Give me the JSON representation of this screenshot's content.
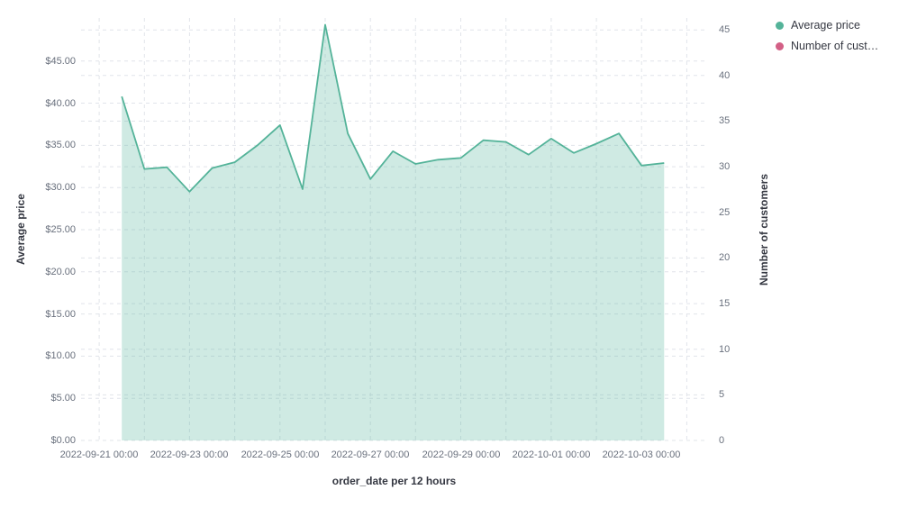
{
  "legend": {
    "items": [
      {
        "label": "Average price",
        "color": "#54b399"
      },
      {
        "label": "Number of cust…",
        "color": "#d36086"
      }
    ]
  },
  "chart_data": {
    "type": "area",
    "title": "",
    "xlabel": "order_date per 12 hours",
    "ylabel": "Average price",
    "ylabel_right": "Number of customers",
    "legend_position": "top-right",
    "grid": "dashed",
    "x": [
      "2022-09-21 12:00",
      "2022-09-22 00:00",
      "2022-09-22 12:00",
      "2022-09-23 00:00",
      "2022-09-23 12:00",
      "2022-09-24 00:00",
      "2022-09-24 12:00",
      "2022-09-25 00:00",
      "2022-09-25 12:00",
      "2022-09-26 00:00",
      "2022-09-26 12:00",
      "2022-09-27 00:00",
      "2022-09-27 12:00",
      "2022-09-28 00:00",
      "2022-09-28 12:00",
      "2022-09-29 00:00",
      "2022-09-29 12:00",
      "2022-09-30 00:00",
      "2022-09-30 12:00",
      "2022-10-01 00:00",
      "2022-10-01 12:00",
      "2022-10-02 00:00",
      "2022-10-02 12:00",
      "2022-10-03 00:00",
      "2022-10-03 12:00"
    ],
    "series": [
      {
        "name": "Average price",
        "axis": "left",
        "type": "area",
        "line_color": "#54b399",
        "fill_color": "rgba(84,179,153,0.28)",
        "values": [
          40.8,
          32.2,
          32.4,
          29.5,
          32.3,
          33.0,
          35.0,
          37.4,
          29.8,
          49.3,
          36.4,
          31.0,
          34.3,
          32.8,
          33.3,
          33.5,
          35.6,
          35.4,
          33.9,
          35.8,
          34.1,
          35.2,
          36.4,
          32.6,
          32.9
        ]
      },
      {
        "name": "Number of customers",
        "axis": "right",
        "type": "line",
        "line_color": "#d36086",
        "values": []
      }
    ],
    "left_axis": {
      "title": "Average price",
      "tick_labels": [
        "$0.00",
        "$5.00",
        "$10.00",
        "$15.00",
        "$20.00",
        "$25.00",
        "$30.00",
        "$35.00",
        "$40.00",
        "$45.00"
      ],
      "tick_values": [
        0,
        5,
        10,
        15,
        20,
        25,
        30,
        35,
        40,
        45
      ],
      "min": 0,
      "max": 50.1
    },
    "right_axis": {
      "title": "Number of customers",
      "tick_labels": [
        "0",
        "5",
        "10",
        "15",
        "20",
        "25",
        "30",
        "35",
        "40",
        "45"
      ],
      "tick_values": [
        0,
        5,
        10,
        15,
        20,
        25,
        30,
        35,
        40,
        45
      ],
      "min": 0,
      "max": 46.3
    },
    "x_axis": {
      "title": "order_date per 12 hours",
      "tick_labels": [
        "2022-09-21 00:00",
        "2022-09-23 00:00",
        "2022-09-25 00:00",
        "2022-09-27 00:00",
        "2022-09-29 00:00",
        "2022-10-01 00:00",
        "2022-10-03 00:00"
      ],
      "tick_indices": [
        -1,
        3,
        7,
        11,
        15,
        19,
        23
      ],
      "gridline_indices": [
        -1,
        1,
        3,
        5,
        7,
        9,
        11,
        13,
        15,
        17,
        19,
        21,
        23,
        25
      ],
      "domain_index": [
        -1.8,
        25.9
      ]
    }
  }
}
